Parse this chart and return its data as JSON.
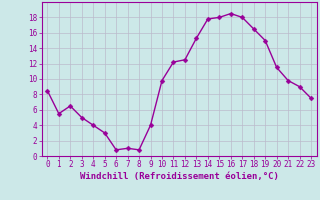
{
  "x": [
    0,
    1,
    2,
    3,
    4,
    5,
    6,
    7,
    8,
    9,
    10,
    11,
    12,
    13,
    14,
    15,
    16,
    17,
    18,
    19,
    20,
    21,
    22,
    23
  ],
  "y": [
    8.5,
    5.5,
    6.5,
    5.0,
    4.0,
    3.0,
    0.8,
    1.0,
    0.8,
    4.0,
    9.8,
    12.2,
    12.5,
    15.3,
    17.8,
    18.0,
    18.5,
    18.0,
    16.5,
    15.0,
    11.5,
    9.8,
    9.0,
    7.5
  ],
  "line_color": "#990099",
  "marker_color": "#990099",
  "bg_color": "#cce8e8",
  "grid_color": "#bbbbcc",
  "xlabel": "Windchill (Refroidissement éolien,°C)",
  "xlabel_color": "#990099",
  "tick_color": "#990099",
  "label_color": "#990099",
  "ylim": [
    0,
    20
  ],
  "xlim": [
    -0.5,
    23.5
  ],
  "yticks": [
    0,
    2,
    4,
    6,
    8,
    10,
    12,
    14,
    16,
    18
  ],
  "xticks": [
    0,
    1,
    2,
    3,
    4,
    5,
    6,
    7,
    8,
    9,
    10,
    11,
    12,
    13,
    14,
    15,
    16,
    17,
    18,
    19,
    20,
    21,
    22,
    23
  ],
  "xtick_labels": [
    "0",
    "1",
    "2",
    "3",
    "4",
    "5",
    "6",
    "7",
    "8",
    "9",
    "10",
    "11",
    "12",
    "13",
    "14",
    "15",
    "16",
    "17",
    "18",
    "19",
    "20",
    "21",
    "22",
    "23"
  ],
  "marker_size": 2.5,
  "line_width": 1.0,
  "tick_fontsize": 5.5,
  "xlabel_fontsize": 6.5
}
